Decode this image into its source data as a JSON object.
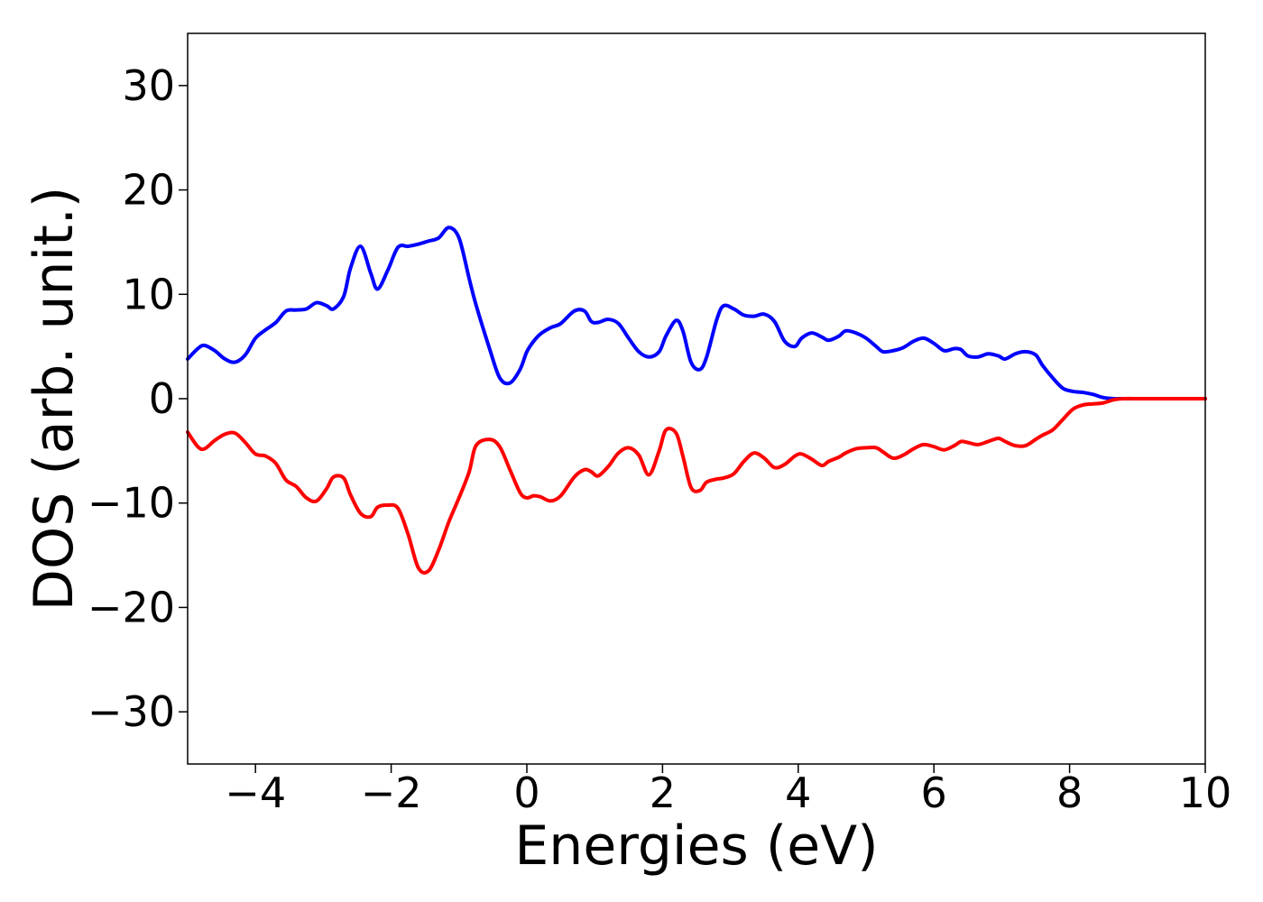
{
  "chart_data": {
    "type": "line",
    "title": "",
    "xlabel": "Energies (eV)",
    "ylabel": "DOS (arb. unit.)",
    "xlim": [
      -5,
      10
    ],
    "ylim": [
      -35,
      35
    ],
    "grid": false,
    "legend": "none",
    "x_ticks": [
      -4,
      -2,
      0,
      2,
      4,
      6,
      8,
      10
    ],
    "x_tick_labels": [
      "−4",
      "−2",
      "0",
      "2",
      "4",
      "6",
      "8",
      "10"
    ],
    "y_ticks": [
      30,
      20,
      10,
      0,
      -10,
      -20,
      -30
    ],
    "y_tick_labels": [
      "30",
      "20",
      "10",
      "0",
      "−10",
      "−20",
      "−30"
    ],
    "series": [
      {
        "color": "#0000ff",
        "x": [
          -5.0,
          -4.85,
          -4.75,
          -4.6,
          -4.45,
          -4.3,
          -4.15,
          -4.0,
          -3.85,
          -3.7,
          -3.55,
          -3.4,
          -3.25,
          -3.1,
          -2.95,
          -2.85,
          -2.7,
          -2.6,
          -2.45,
          -2.3,
          -2.2,
          -2.05,
          -1.9,
          -1.75,
          -1.6,
          -1.45,
          -1.3,
          -1.15,
          -1.0,
          -0.85,
          -0.75,
          -0.55,
          -0.4,
          -0.25,
          -0.1,
          0.0,
          0.1,
          0.2,
          0.35,
          0.5,
          0.7,
          0.85,
          0.95,
          1.05,
          1.2,
          1.35,
          1.5,
          1.65,
          1.8,
          1.95,
          2.05,
          2.2,
          2.3,
          2.42,
          2.55,
          2.65,
          2.8,
          2.9,
          3.05,
          3.2,
          3.35,
          3.5,
          3.65,
          3.8,
          3.95,
          4.05,
          4.2,
          4.35,
          4.45,
          4.6,
          4.7,
          4.85,
          5.0,
          5.15,
          5.25,
          5.4,
          5.55,
          5.7,
          5.85,
          6.0,
          6.15,
          6.3,
          6.4,
          6.5,
          6.65,
          6.8,
          6.95,
          7.05,
          7.2,
          7.35,
          7.5,
          7.6,
          7.75,
          7.9,
          8.05,
          8.2,
          8.35,
          8.5,
          8.65,
          8.8,
          9.0,
          9.2,
          9.4,
          9.6,
          10.0
        ],
        "values": [
          3.8,
          4.8,
          5.1,
          4.6,
          3.8,
          3.5,
          4.2,
          5.8,
          6.6,
          7.3,
          8.4,
          8.5,
          8.6,
          9.2,
          8.9,
          8.6,
          9.8,
          12.5,
          14.6,
          12.0,
          10.5,
          12.3,
          14.5,
          14.6,
          14.8,
          15.1,
          15.4,
          16.4,
          15.4,
          11.5,
          9.0,
          4.8,
          2.0,
          1.5,
          2.8,
          4.5,
          5.5,
          6.2,
          6.8,
          7.2,
          8.4,
          8.4,
          7.4,
          7.3,
          7.6,
          7.2,
          5.8,
          4.5,
          4.0,
          4.5,
          6.0,
          7.5,
          6.5,
          3.5,
          2.8,
          4.0,
          7.6,
          8.9,
          8.6,
          8.0,
          7.9,
          8.1,
          7.4,
          5.5,
          5.0,
          5.8,
          6.3,
          5.9,
          5.6,
          6.0,
          6.5,
          6.3,
          5.8,
          5.0,
          4.5,
          4.6,
          4.9,
          5.5,
          5.8,
          5.3,
          4.6,
          4.8,
          4.7,
          4.1,
          4.0,
          4.3,
          4.1,
          3.8,
          4.3,
          4.5,
          4.2,
          3.2,
          2.0,
          1.0,
          0.7,
          0.6,
          0.4,
          0.1,
          0.0,
          0.0,
          0.0,
          0.0,
          0.0,
          0.0,
          0.0
        ]
      },
      {
        "color": "#ff0000",
        "x": [
          -5.0,
          -4.85,
          -4.75,
          -4.6,
          -4.45,
          -4.3,
          -4.15,
          -4.0,
          -3.85,
          -3.7,
          -3.55,
          -3.4,
          -3.25,
          -3.1,
          -2.95,
          -2.85,
          -2.7,
          -2.6,
          -2.45,
          -2.3,
          -2.2,
          -2.05,
          -1.9,
          -1.75,
          -1.6,
          -1.45,
          -1.3,
          -1.15,
          -1.0,
          -0.85,
          -0.75,
          -0.55,
          -0.4,
          -0.25,
          -0.1,
          0.0,
          0.1,
          0.2,
          0.35,
          0.5,
          0.7,
          0.85,
          0.95,
          1.05,
          1.2,
          1.35,
          1.5,
          1.65,
          1.8,
          1.95,
          2.05,
          2.2,
          2.3,
          2.42,
          2.55,
          2.65,
          2.8,
          2.9,
          3.05,
          3.2,
          3.35,
          3.5,
          3.65,
          3.8,
          3.95,
          4.05,
          4.2,
          4.35,
          4.45,
          4.6,
          4.7,
          4.85,
          5.0,
          5.15,
          5.25,
          5.4,
          5.55,
          5.7,
          5.85,
          6.0,
          6.15,
          6.3,
          6.4,
          6.5,
          6.65,
          6.8,
          6.95,
          7.05,
          7.2,
          7.35,
          7.5,
          7.6,
          7.75,
          7.9,
          8.05,
          8.2,
          8.35,
          8.5,
          8.65,
          8.8,
          9.0,
          9.2,
          9.4,
          9.6,
          10.0
        ],
        "values": [
          -3.2,
          -4.6,
          -4.8,
          -4.0,
          -3.4,
          -3.3,
          -4.2,
          -5.3,
          -5.5,
          -6.2,
          -7.8,
          -8.4,
          -9.5,
          -9.8,
          -8.6,
          -7.5,
          -7.6,
          -9.2,
          -11.0,
          -11.3,
          -10.4,
          -10.2,
          -10.5,
          -13.0,
          -16.2,
          -16.5,
          -14.5,
          -11.8,
          -9.5,
          -7.0,
          -4.5,
          -3.9,
          -4.6,
          -6.8,
          -9.0,
          -9.5,
          -9.3,
          -9.4,
          -9.8,
          -9.3,
          -7.5,
          -6.8,
          -7.0,
          -7.4,
          -6.5,
          -5.2,
          -4.7,
          -5.4,
          -7.3,
          -5.0,
          -3.0,
          -3.3,
          -5.5,
          -8.5,
          -8.8,
          -8.0,
          -7.7,
          -7.6,
          -7.2,
          -6.0,
          -5.2,
          -5.7,
          -6.6,
          -6.3,
          -5.5,
          -5.3,
          -5.8,
          -6.4,
          -6.0,
          -5.6,
          -5.2,
          -4.8,
          -4.7,
          -4.7,
          -5.1,
          -5.7,
          -5.4,
          -4.8,
          -4.4,
          -4.6,
          -4.9,
          -4.5,
          -4.1,
          -4.2,
          -4.4,
          -4.1,
          -3.8,
          -4.1,
          -4.5,
          -4.5,
          -3.9,
          -3.5,
          -3.0,
          -2.0,
          -1.0,
          -0.6,
          -0.5,
          -0.4,
          -0.1,
          0.0,
          0.0,
          0.0,
          0.0,
          0.0,
          0.0
        ]
      }
    ]
  }
}
